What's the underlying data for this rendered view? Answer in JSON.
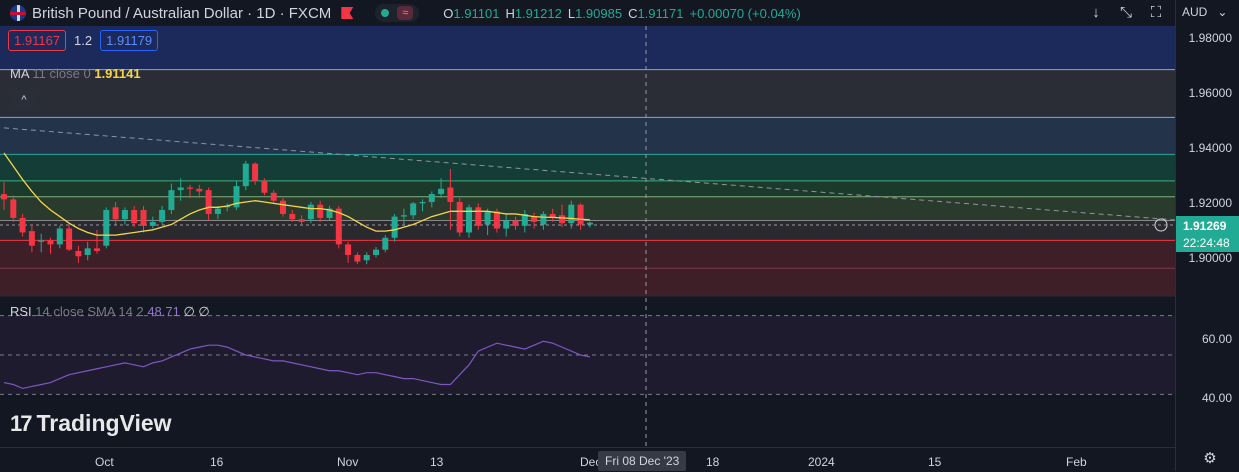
{
  "header": {
    "symbol": "British Pound / Australian Dollar · 1D · FXCM",
    "wave_icon": "≈",
    "ohlc": [
      {
        "label": "O",
        "value": "1.91101"
      },
      {
        "label": "H",
        "value": "1.91212"
      },
      {
        "label": "L",
        "value": "1.90985"
      },
      {
        "label": "C",
        "value": "1.91171"
      },
      {
        "label": "",
        "value": "+0.00070 (+0.04%)"
      }
    ]
  },
  "toolbar": {
    "buttons": [
      {
        "name": "arrow-down-icon",
        "glyph": "↓"
      },
      {
        "name": "collapse-arrows-icon",
        "glyph": "⤡"
      },
      {
        "name": "fullscreen-icon",
        "glyph": "⛶"
      }
    ],
    "currency": "AUD",
    "currency_chevron": "⌄"
  },
  "trade": {
    "sell": "1.91167",
    "spread": "1.2",
    "buy": "1.91179"
  },
  "ma_legend": {
    "name": "MA",
    "params": "11 close 0",
    "value": "1.91141"
  },
  "collapse_glyph": "^",
  "rsi_legend": {
    "name": "RSI",
    "params": "14 close SMA 14 2",
    "value": "48.71",
    "extra": "∅ ∅"
  },
  "price_axis": {
    "labels": [
      "1.98000",
      "1.96000",
      "1.94000",
      "1.92000",
      "1.90000"
    ]
  },
  "rsi_axis": {
    "labels": [
      "60.00",
      "40.00"
    ]
  },
  "current_price": {
    "price": "1.91269",
    "countdown": "22:24:48"
  },
  "time_axis": {
    "labels": [
      "Oct",
      "16",
      "Nov",
      "13",
      "Dec",
      "18",
      "2024",
      "15",
      "Feb"
    ],
    "crosshair": "Fri 08 Dec '23"
  },
  "brand": {
    "logo": "17",
    "name": "TradingView"
  },
  "colors": {
    "up": "#22ab94",
    "down": "#f23645",
    "ma": "#f7d54a",
    "rsi": "#7e57c2"
  },
  "chart_data": {
    "type": "candlestick",
    "series": [
      {
        "name": "GBPAUD",
        "candles": [
          [
            1.9225,
            1.927,
            1.9165,
            1.9205
          ],
          [
            1.9205,
            1.922,
            1.912,
            1.9135
          ],
          [
            1.9135,
            1.915,
            1.9065,
            1.908
          ],
          [
            1.9085,
            1.911,
            1.9005,
            1.903
          ],
          [
            1.9045,
            1.9075,
            1.9005,
            1.905
          ],
          [
            1.905,
            1.906,
            1.9,
            1.9035
          ],
          [
            1.9035,
            1.9105,
            1.902,
            1.9095
          ],
          [
            1.9095,
            1.911,
            1.901,
            1.9015
          ],
          [
            1.901,
            1.903,
            1.8965,
            1.899
          ],
          [
            1.8995,
            1.9045,
            1.8975,
            1.902
          ],
          [
            1.902,
            1.909,
            1.9,
            1.901
          ],
          [
            1.903,
            1.9175,
            1.902,
            1.9165
          ],
          [
            1.9175,
            1.9195,
            1.911,
            1.913
          ],
          [
            1.913,
            1.9175,
            1.911,
            1.9165
          ],
          [
            1.9165,
            1.918,
            1.91,
            1.9115
          ],
          [
            1.9165,
            1.918,
            1.908,
            1.9105
          ],
          [
            1.9105,
            1.914,
            1.9095,
            1.912
          ],
          [
            1.912,
            1.918,
            1.911,
            1.9165
          ],
          [
            1.9165,
            1.9265,
            1.915,
            1.924
          ],
          [
            1.924,
            1.9285,
            1.92,
            1.925
          ],
          [
            1.925,
            1.926,
            1.921,
            1.9245
          ],
          [
            1.9245,
            1.926,
            1.921,
            1.9235
          ],
          [
            1.924,
            1.925,
            1.9125,
            1.915
          ],
          [
            1.915,
            1.918,
            1.913,
            1.917
          ],
          [
            1.9175,
            1.919,
            1.916,
            1.918
          ],
          [
            1.9175,
            1.9275,
            1.9165,
            1.9255
          ],
          [
            1.9255,
            1.935,
            1.924,
            1.934
          ],
          [
            1.934,
            1.9345,
            1.926,
            1.9275
          ],
          [
            1.9275,
            1.9285,
            1.922,
            1.923
          ],
          [
            1.923,
            1.924,
            1.919,
            1.92
          ],
          [
            1.92,
            1.921,
            1.914,
            1.915
          ],
          [
            1.915,
            1.9165,
            1.912,
            1.913
          ],
          [
            1.913,
            1.9145,
            1.9105,
            1.912
          ],
          [
            1.913,
            1.9195,
            1.9115,
            1.9185
          ],
          [
            1.9185,
            1.92,
            1.912,
            1.9135
          ],
          [
            1.9135,
            1.918,
            1.9125,
            1.917
          ],
          [
            1.917,
            1.918,
            1.902,
            1.9035
          ],
          [
            1.9035,
            1.9045,
            1.8965,
            1.8995
          ],
          [
            1.8995,
            1.9005,
            1.896,
            1.897
          ],
          [
            1.8975,
            1.9005,
            1.896,
            1.8995
          ],
          [
            1.8995,
            1.9025,
            1.8985,
            1.9015
          ],
          [
            1.9015,
            1.907,
            1.9005,
            1.906
          ],
          [
            1.906,
            1.915,
            1.9045,
            1.914
          ],
          [
            1.914,
            1.917,
            1.9105,
            1.9145
          ],
          [
            1.9145,
            1.9195,
            1.913,
            1.919
          ],
          [
            1.919,
            1.9205,
            1.916,
            1.9195
          ],
          [
            1.9195,
            1.9235,
            1.9175,
            1.9225
          ],
          [
            1.9225,
            1.9285,
            1.921,
            1.9245
          ],
          [
            1.925,
            1.932,
            1.909,
            1.9195
          ],
          [
            1.9195,
            1.921,
            1.9065,
            1.908
          ],
          [
            1.908,
            1.9185,
            1.906,
            1.9175
          ],
          [
            1.9175,
            1.919,
            1.909,
            1.9105
          ],
          [
            1.911,
            1.917,
            1.907,
            1.916
          ],
          [
            1.916,
            1.917,
            1.908,
            1.9095
          ],
          [
            1.9095,
            1.915,
            1.9065,
            1.9125
          ],
          [
            1.9125,
            1.914,
            1.909,
            1.9105
          ],
          [
            1.9105,
            1.9165,
            1.908,
            1.915
          ],
          [
            1.914,
            1.9155,
            1.9095,
            1.912
          ],
          [
            1.911,
            1.916,
            1.909,
            1.915
          ],
          [
            1.915,
            1.917,
            1.912,
            1.9135
          ],
          [
            1.9145,
            1.9185,
            1.91,
            1.9115
          ],
          [
            1.9115,
            1.92,
            1.9095,
            1.9185
          ],
          [
            1.9185,
            1.919,
            1.909,
            1.911
          ],
          [
            1.911,
            1.9121,
            1.9099,
            1.9117
          ]
        ]
      },
      {
        "name": "MA 11 close 0",
        "values": [
          1.938,
          1.933,
          1.928,
          1.9235,
          1.9195,
          1.9165,
          1.914,
          1.9115,
          1.9095,
          1.908,
          1.907,
          1.907,
          1.907,
          1.9075,
          1.908,
          1.9085,
          1.909,
          1.91,
          1.911,
          1.913,
          1.915,
          1.9165,
          1.9175,
          1.9175,
          1.918,
          1.919,
          1.9195,
          1.92,
          1.9195,
          1.919,
          1.9185,
          1.918,
          1.9175,
          1.917,
          1.917,
          1.9165,
          1.9155,
          1.914,
          1.912,
          1.91,
          1.9085,
          1.9085,
          1.909,
          1.91,
          1.911,
          1.9125,
          1.914,
          1.915,
          1.916,
          1.916,
          1.916,
          1.916,
          1.916,
          1.9155,
          1.915,
          1.915,
          1.9145,
          1.914,
          1.9138,
          1.9137,
          1.9135,
          1.9133,
          1.913,
          1.9128,
          1.9127,
          1.913,
          1.913,
          1.913,
          1.913,
          1.913,
          1.913,
          1.913,
          1.913,
          1.913,
          1.913,
          1.913,
          1.913,
          1.913,
          1.913,
          1.913,
          1.913,
          1.913,
          1.913,
          1.913,
          1.913,
          1.913,
          1.913,
          1.913,
          1.913,
          1.913,
          1.913,
          1.913,
          1.913,
          1.913,
          1.913,
          1.913,
          1.913,
          1.913,
          1.913,
          1.913,
          1.913,
          1.913,
          1.913,
          1.913,
          1.913,
          1.913,
          1.913,
          1.913,
          1.913,
          1.913,
          1.913,
          1.913,
          1.913,
          1.913,
          1.913,
          1.913,
          1.913,
          1.913,
          1.913,
          1.913,
          1.913,
          1.913,
          1.913,
          1.913,
          1.913,
          1.913,
          1.913,
          1.913,
          1.913,
          1.913,
          1.913,
          1.913,
          1.913,
          1.913,
          1.913,
          1.913,
          1.913,
          1.913,
          1.913,
          1.913,
          1.913,
          1.913,
          1.913,
          1.913,
          1.913,
          1.913,
          1.913,
          1.913,
          1.913,
          1.913,
          1.913,
          1.913
        ]
      },
      {
        "name": "RSI 14",
        "values": [
          36,
          35,
          33,
          34,
          35,
          36,
          38,
          40,
          41,
          42,
          43,
          44,
          45,
          46,
          45,
          44,
          46,
          47,
          49,
          51,
          53,
          54,
          55,
          55,
          54,
          52,
          50,
          49,
          48,
          47,
          47,
          46,
          45,
          44,
          43,
          42,
          42,
          41,
          40,
          41,
          41,
          40,
          39,
          38,
          38,
          37,
          36,
          35,
          35,
          40,
          45,
          52,
          54,
          56,
          55,
          54,
          53,
          55,
          57,
          56,
          54,
          52,
          50,
          49,
          48,
          49,
          51,
          53,
          55,
          56,
          57,
          55,
          53,
          51,
          49,
          47,
          46,
          48,
          50,
          52,
          51,
          50,
          49,
          48,
          47,
          46,
          48,
          50,
          52,
          53,
          54,
          55,
          56,
          57,
          56,
          55,
          54,
          53,
          52,
          51,
          49,
          47,
          50,
          52,
          54,
          55,
          54,
          53,
          52,
          51,
          50,
          49,
          48,
          49,
          50,
          51,
          52,
          53,
          51,
          49,
          48,
          48,
          49,
          50,
          51,
          52,
          53,
          54,
          55,
          56,
          55,
          54,
          53,
          52,
          51,
          50,
          49,
          48,
          47,
          46,
          47,
          48,
          50,
          51,
          52,
          51,
          50,
          49,
          48,
          47,
          46,
          45,
          46,
          47,
          48,
          49,
          50,
          51,
          52,
          53,
          52,
          51,
          50,
          49,
          48,
          47,
          46,
          45,
          46,
          47,
          48,
          49,
          50,
          51,
          52,
          53
        ]
      }
    ],
    "categories_note": "",
    "xlabels": [
      "Oct",
      "16",
      "Nov",
      "13",
      "Dec",
      "18",
      "2024",
      "15",
      "Feb"
    ],
    "ylim": [
      1.884,
      1.986
    ],
    "rsi_ylim": [
      20,
      80
    ],
    "grid": false,
    "horizontal_levels": [
      1.9695,
      1.9515,
      1.9375,
      1.9275,
      1.9215,
      1.9125,
      1.905,
      1.8945
    ],
    "trendline": [
      [
        0,
        1.9475
      ],
      [
        210,
        1.8895
      ]
    ],
    "rsi_levels": [
      70,
      50,
      30
    ]
  }
}
